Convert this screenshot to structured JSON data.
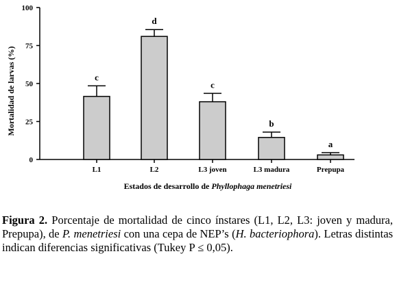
{
  "chart_data": {
    "type": "bar",
    "categories": [
      "L1",
      "L2",
      "L3 joven",
      "L3 madura",
      "Prepupa"
    ],
    "values": [
      41.5,
      81,
      38,
      14.5,
      3
    ],
    "errors": [
      7,
      4.5,
      5.5,
      3.5,
      1.5
    ],
    "significance_letters": [
      "c",
      "d",
      "c",
      "b",
      "a"
    ],
    "ylabel": "Mortalidad de larvas (%)",
    "xlabel_prefix": "Estados de desarrollo de ",
    "xlabel_species": "Phyllophaga menetriesi",
    "yticks": [
      0,
      25,
      50,
      75,
      100
    ],
    "ylim": [
      0,
      100
    ],
    "grid": false,
    "bar_color": "#cccccc"
  },
  "caption": {
    "label": "Figura 2.",
    "text1": " Porcentaje de mortalidad de cinco ínstares (L1, L2, L3: joven y madura, Prepupa), de ",
    "species1": "P. menetriesi",
    "text2": " con una cepa de NEP’s (",
    "species2": "H. bacteriophora",
    "text3": "). Letras distintas indican diferencias significativas (Tukey P ≤ 0,05)."
  }
}
